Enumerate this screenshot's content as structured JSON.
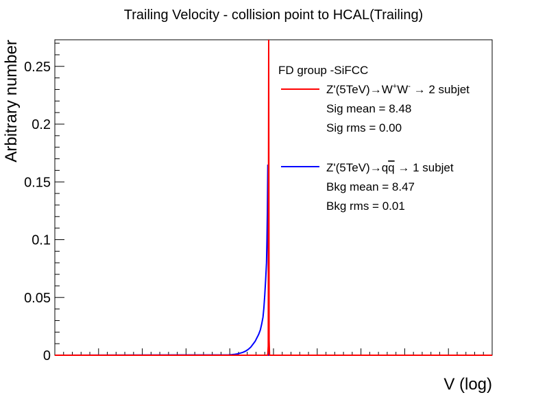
{
  "chart_data": {
    "type": "line",
    "title": "Trailing Velocity - collision point to HCAL(Trailing)",
    "xlabel": "V (log)",
    "ylabel": "Arbitrary number",
    "xlim": [
      0,
      10
    ],
    "ylim": [
      0,
      0.273
    ],
    "y_ticks": [
      0,
      0.05,
      0.1,
      0.15,
      0.2,
      0.25
    ],
    "y_tick_labels": [
      "0",
      "0.05",
      "0.1",
      "0.15",
      "0.2",
      "0.25"
    ],
    "grid": false,
    "legend_position": "top-right",
    "legend_header": "FD group -SiFCC",
    "series": [
      {
        "name": "Z'(5TeV)→W⁺W⁻ → 2 subjet",
        "color": "#ff0000",
        "stats": [
          "Sig mean = 8.48",
          "Sig rms = 0.00"
        ],
        "x": [
          0,
          4.86,
          4.87,
          4.88,
          4.89,
          4.9,
          4.91,
          10
        ],
        "y": [
          0,
          0,
          0.001,
          0.008,
          0.273,
          0.013,
          0,
          0
        ]
      },
      {
        "name": "Z'(5TeV)→q q̅ → 1 subjet",
        "color": "#0000ff",
        "stats": [
          "Bkg mean = 8.47",
          "Bkg rms = 0.01"
        ],
        "x": [
          0,
          3.98,
          4.05,
          4.12,
          4.18,
          4.24,
          4.3,
          4.36,
          4.42,
          4.48,
          4.53,
          4.58,
          4.62,
          4.66,
          4.7,
          4.73,
          4.76,
          4.78,
          4.8,
          4.82,
          4.84,
          4.85,
          4.86,
          4.87,
          4.88,
          4.89,
          10
        ],
        "y": [
          0,
          0.0003,
          0.0005,
          0.0008,
          0.0012,
          0.0018,
          0.0025,
          0.0035,
          0.005,
          0.007,
          0.0095,
          0.012,
          0.015,
          0.018,
          0.022,
          0.027,
          0.033,
          0.041,
          0.052,
          0.065,
          0.08,
          0.099,
          0.124,
          0.165,
          0.082,
          0,
          0
        ]
      }
    ]
  }
}
